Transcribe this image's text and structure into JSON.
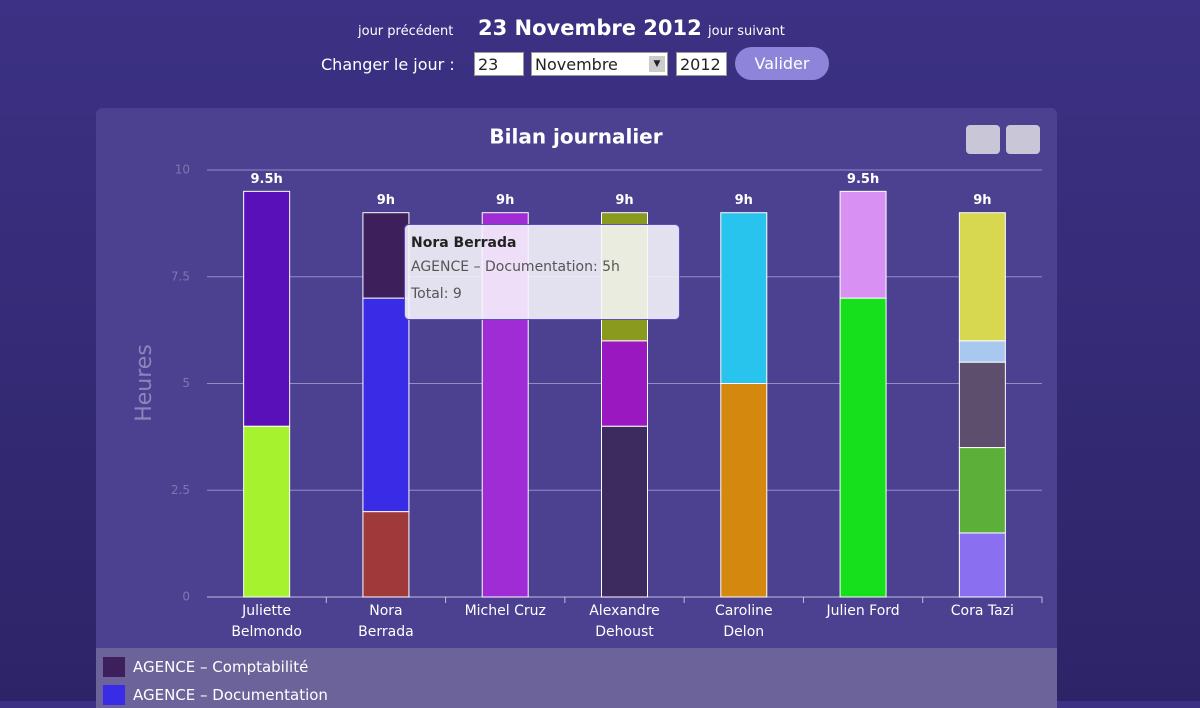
{
  "header": {
    "prev": "jour précédent",
    "date": "23 Novembre 2012",
    "next": "jour suivant",
    "change_label": "Changer le jour :",
    "day": "23",
    "month": "Novembre",
    "year": "2012",
    "submit": "Valider"
  },
  "chart_data": {
    "type": "stacked-bar",
    "title": "Bilan journalier",
    "y_label": "Heures",
    "categories": [
      "Juliette Belmondo",
      "Nora Berrada",
      "Michel Cruz",
      "Alexandre Dehoust",
      "Caroline Delon",
      "Julien Ford",
      "Cora Tazi"
    ],
    "stacks": [
      {
        "segments": [
          {
            "value": 4,
            "color": "#a6f22e"
          },
          {
            "value": 5.5,
            "color": "#5a10b8"
          }
        ]
      },
      {
        "segments": [
          {
            "value": 2,
            "color": "#a03a3a"
          },
          {
            "value": 5,
            "color": "#3a2ce6"
          },
          {
            "value": 2,
            "color": "#3d1f5c"
          }
        ]
      },
      {
        "segments": [
          {
            "value": 9,
            "color": "#a02cd6"
          }
        ]
      },
      {
        "segments": [
          {
            "value": 4,
            "color": "#3d2a5e"
          },
          {
            "value": 2,
            "color": "#9a18c0"
          },
          {
            "value": 3,
            "color": "#8a9a1e"
          }
        ]
      },
      {
        "segments": [
          {
            "value": 5,
            "color": "#d4880e"
          },
          {
            "value": 4,
            "color": "#28c4ee"
          }
        ]
      },
      {
        "segments": [
          {
            "value": 7,
            "color": "#16e01c"
          },
          {
            "value": 2.5,
            "color": "#d890f2"
          }
        ]
      },
      {
        "segments": [
          {
            "value": 1.5,
            "color": "#8a70f0"
          },
          {
            "value": 2,
            "color": "#5cb03a"
          },
          {
            "value": 2,
            "color": "#5e4e6e"
          },
          {
            "value": 0.5,
            "color": "#a8c8f0"
          },
          {
            "value": 3,
            "color": "#d8d850"
          }
        ]
      }
    ],
    "totals": [
      9.5,
      9,
      9,
      9,
      9,
      9.5,
      9
    ],
    "value_labels": [
      "9.5h",
      "9h",
      "9h",
      "9h",
      "9h",
      "9.5h",
      "9h"
    ],
    "ylim": [
      0,
      10
    ],
    "yticks": [
      0,
      2.5,
      5,
      7.5,
      10
    ],
    "grid": true,
    "legend": [
      {
        "name": "AGENCE – Comptabilité",
        "color": "#3d1f5c"
      },
      {
        "name": "AGENCE – Documentation",
        "color": "#3a2ce6"
      }
    ],
    "tooltip": {
      "title": "Nora Berrada",
      "lines": [
        "AGENCE – Documentation: 5h",
        "Total: 9"
      ]
    }
  }
}
